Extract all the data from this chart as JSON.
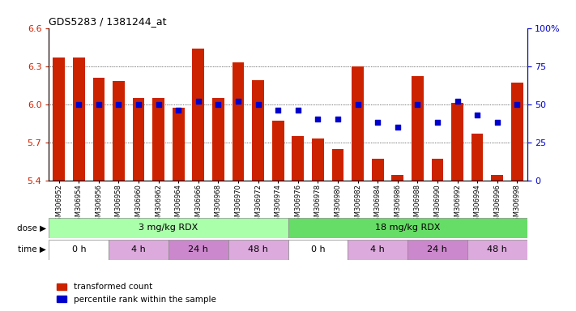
{
  "title": "GDS5283 / 1381244_at",
  "samples": [
    "GSM306952",
    "GSM306954",
    "GSM306956",
    "GSM306958",
    "GSM306960",
    "GSM306962",
    "GSM306964",
    "GSM306966",
    "GSM306968",
    "GSM306970",
    "GSM306972",
    "GSM306974",
    "GSM306976",
    "GSM306978",
    "GSM306980",
    "GSM306982",
    "GSM306984",
    "GSM306986",
    "GSM306988",
    "GSM306990",
    "GSM306992",
    "GSM306994",
    "GSM306996",
    "GSM306998"
  ],
  "transformed_count": [
    6.37,
    6.37,
    6.21,
    6.18,
    6.05,
    6.05,
    5.97,
    6.44,
    6.05,
    6.33,
    6.19,
    5.87,
    5.75,
    5.73,
    5.65,
    6.3,
    5.57,
    5.44,
    6.22,
    5.57,
    6.01,
    5.77,
    5.44,
    6.17
  ],
  "percentile_rank": [
    null,
    50,
    50,
    50,
    50,
    50,
    46,
    52,
    50,
    52,
    50,
    46,
    46,
    40,
    40,
    50,
    38,
    35,
    50,
    38,
    52,
    43,
    38,
    50
  ],
  "ylim_left": [
    5.4,
    6.6
  ],
  "ylim_right": [
    0,
    100
  ],
  "yticks_left": [
    5.4,
    5.7,
    6.0,
    6.3,
    6.6
  ],
  "yticks_right": [
    0,
    25,
    50,
    75,
    100
  ],
  "bar_color": "#cc2200",
  "dot_color": "#0000cc",
  "bar_bottom": 5.4,
  "dose_labels": [
    {
      "text": "3 mg/kg RDX",
      "start": 0,
      "end": 12,
      "color": "#aaffaa"
    },
    {
      "text": "18 mg/kg RDX",
      "start": 12,
      "end": 24,
      "color": "#66dd66"
    }
  ],
  "time_groups": [
    {
      "text": "0 h",
      "start": 0,
      "end": 3,
      "color": "#ffffff"
    },
    {
      "text": "4 h",
      "start": 3,
      "end": 6,
      "color": "#ddaadd"
    },
    {
      "text": "24 h",
      "start": 6,
      "end": 9,
      "color": "#cc88cc"
    },
    {
      "text": "48 h",
      "start": 9,
      "end": 12,
      "color": "#ddaadd"
    },
    {
      "text": "0 h",
      "start": 12,
      "end": 15,
      "color": "#ffffff"
    },
    {
      "text": "4 h",
      "start": 15,
      "end": 18,
      "color": "#ddaadd"
    },
    {
      "text": "24 h",
      "start": 18,
      "end": 21,
      "color": "#cc88cc"
    },
    {
      "text": "48 h",
      "start": 21,
      "end": 24,
      "color": "#ddaadd"
    }
  ],
  "grid_color": "#000000",
  "tick_color_left": "#cc2200",
  "tick_color_right": "#0000cc",
  "background_color": "#ffffff",
  "plot_bg_color": "#ffffff"
}
